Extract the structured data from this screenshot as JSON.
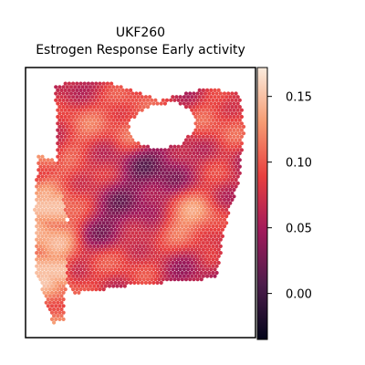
{
  "chart_data": {
    "type": "heatmap",
    "title_lines": [
      "UKF260",
      "Estrogen Response Early activity"
    ],
    "xlabel": "",
    "ylabel": "",
    "colormap": "rocket",
    "colormap_stops": [
      "#03051a",
      "#4c1d4b",
      "#a11a5b",
      "#e83f3f",
      "#f69c73",
      "#faebdd"
    ],
    "colorbar": {
      "range": [
        -0.035,
        0.172
      ],
      "ticks": [
        0.0,
        0.05,
        0.1,
        0.15
      ],
      "tick_labels": [
        "0.00",
        "0.05",
        "0.10",
        "0.15"
      ]
    },
    "spots_note": "Visium-like hexagonal spot grid covering the tissue; values estimated from the colour scale.",
    "hotspots": [
      {
        "x": 0.08,
        "y": 0.62,
        "value": 0.16
      },
      {
        "x": 0.09,
        "y": 0.8,
        "value": 0.15
      },
      {
        "x": 0.1,
        "y": 0.5,
        "value": 0.14
      },
      {
        "x": 0.25,
        "y": 0.22,
        "value": 0.11
      },
      {
        "x": 0.2,
        "y": 0.45,
        "value": 0.1
      },
      {
        "x": 0.47,
        "y": 0.18,
        "value": 0.12
      },
      {
        "x": 0.62,
        "y": 0.12,
        "value": 0.08
      },
      {
        "x": 0.85,
        "y": 0.2,
        "value": 0.11
      },
      {
        "x": 0.72,
        "y": 0.55,
        "value": 0.14
      },
      {
        "x": 0.57,
        "y": 0.4,
        "value": 0.02
      },
      {
        "x": 0.38,
        "y": 0.55,
        "value": 0.03
      },
      {
        "x": 0.48,
        "y": 0.72,
        "value": 0.1
      },
      {
        "x": 0.3,
        "y": 0.78,
        "value": 0.09
      },
      {
        "x": 0.65,
        "y": 0.78,
        "value": 0.06
      },
      {
        "x": 0.82,
        "y": 0.42,
        "value": 0.08
      }
    ],
    "background_value": 0.06
  }
}
